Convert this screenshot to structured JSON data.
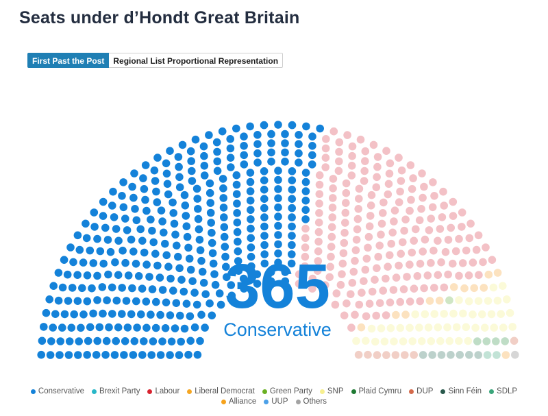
{
  "title": "Seats under d’Hondt Great Britain",
  "tabs": [
    {
      "label": "First Past the Post",
      "active": true
    },
    {
      "label": "Regional List Proportional Representation",
      "active": false
    }
  ],
  "highlight": {
    "value": "365",
    "label": "Conservative",
    "color": "#1482d9"
  },
  "chart_data": {
    "type": "parliament",
    "total_seats": 650,
    "series": [
      {
        "name": "Conservative",
        "seats": 365,
        "color": "#1482d9"
      },
      {
        "name": "Brexit Party",
        "seats": 0,
        "color": "#28b7c8"
      },
      {
        "name": "Labour",
        "seats": 202,
        "color": "#f3c1c6"
      },
      {
        "name": "Liberal Democrat",
        "seats": 11,
        "color": "#fce2bf"
      },
      {
        "name": "Green Party",
        "seats": 1,
        "color": "#cfe6c4"
      },
      {
        "name": "SNP",
        "seats": 48,
        "color": "#fbfad8"
      },
      {
        "name": "Plaid Cymru",
        "seats": 4,
        "color": "#bfddc6"
      },
      {
        "name": "DUP",
        "seats": 8,
        "color": "#f1cfc6"
      },
      {
        "name": "Sinn Féin",
        "seats": 7,
        "color": "#bcd1cb"
      },
      {
        "name": "SDLP",
        "seats": 2,
        "color": "#c2e3d6"
      },
      {
        "name": "Alliance",
        "seats": 1,
        "color": "#fce2bf"
      },
      {
        "name": "UUP",
        "seats": 0,
        "color": "#bcd9f3"
      },
      {
        "name": "Others",
        "seats": 1,
        "color": "#d6d6d6"
      }
    ]
  },
  "legend": [
    {
      "name": "Conservative",
      "color": "#1482d9"
    },
    {
      "name": "Brexit Party",
      "color": "#28b7c8"
    },
    {
      "name": "Labour",
      "color": "#d8232f"
    },
    {
      "name": "Liberal Democrat",
      "color": "#f5a623"
    },
    {
      "name": "Green Party",
      "color": "#6ab023"
    },
    {
      "name": "SNP",
      "color": "#f7ef8f"
    },
    {
      "name": "Plaid Cymru",
      "color": "#1f7a33"
    },
    {
      "name": "DUP",
      "color": "#d46a4c"
    },
    {
      "name": "Sinn Féin",
      "color": "#29594c"
    },
    {
      "name": "SDLP",
      "color": "#3aa57a"
    },
    {
      "name": "Alliance",
      "color": "#f6a21b"
    },
    {
      "name": "UUP",
      "color": "#4ca0e8"
    },
    {
      "name": "Others",
      "color": "#a3a3a3"
    }
  ]
}
